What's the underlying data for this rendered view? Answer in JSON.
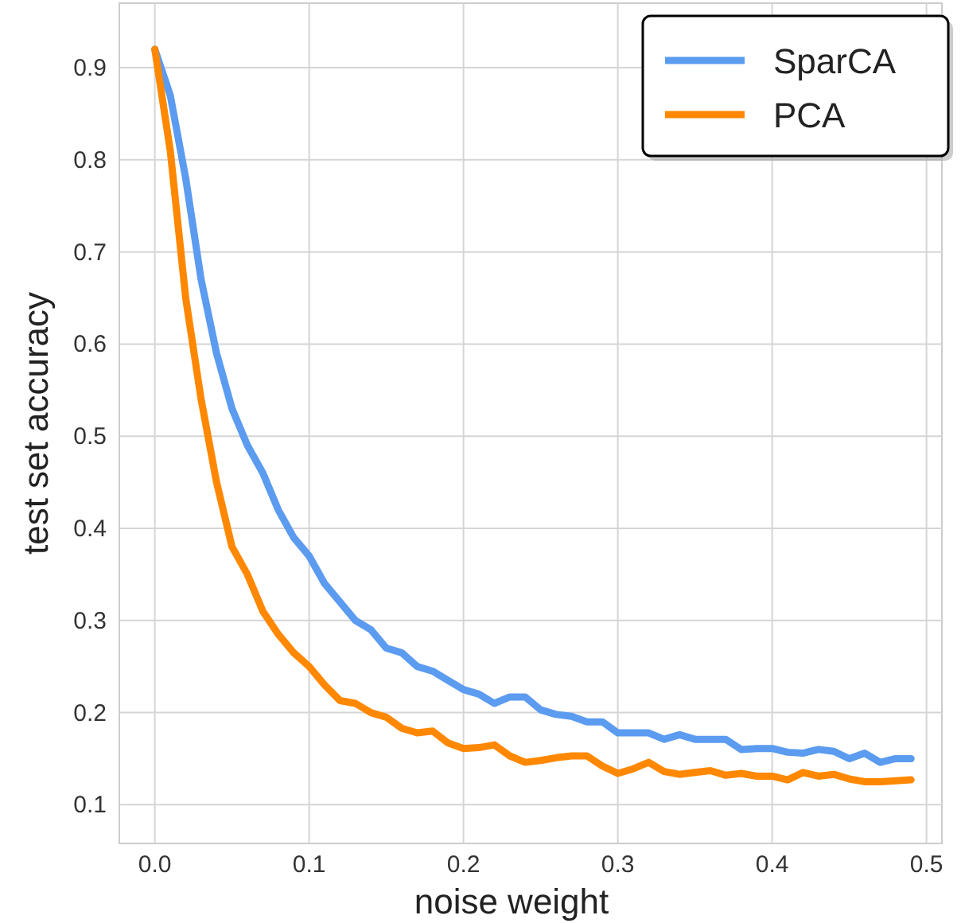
{
  "chart_data": {
    "type": "line",
    "xlabel": "noise weight",
    "ylabel": "test set accuracy",
    "x": [
      0,
      0.01,
      0.02,
      0.03,
      0.04,
      0.05,
      0.06,
      0.07,
      0.08,
      0.09,
      0.1,
      0.11,
      0.12,
      0.13,
      0.14,
      0.15,
      0.16,
      0.17,
      0.18,
      0.19,
      0.2,
      0.21,
      0.22,
      0.23,
      0.24,
      0.25,
      0.26,
      0.27,
      0.28,
      0.29,
      0.3,
      0.31,
      0.32,
      0.33,
      0.34,
      0.35,
      0.36,
      0.37,
      0.38,
      0.39,
      0.4,
      0.41,
      0.42,
      0.43,
      0.44,
      0.45,
      0.46,
      0.47,
      0.48,
      0.49
    ],
    "series": [
      {
        "name": "SparCA",
        "color": "#5b9bf0",
        "values": [
          0.92,
          0.87,
          0.78,
          0.67,
          0.59,
          0.53,
          0.49,
          0.46,
          0.42,
          0.39,
          0.37,
          0.34,
          0.32,
          0.3,
          0.29,
          0.27,
          0.265,
          0.25,
          0.245,
          0.235,
          0.225,
          0.22,
          0.21,
          0.217,
          0.217,
          0.203,
          0.198,
          0.196,
          0.19,
          0.19,
          0.178,
          0.178,
          0.178,
          0.171,
          0.176,
          0.171,
          0.171,
          0.171,
          0.16,
          0.161,
          0.161,
          0.157,
          0.156,
          0.16,
          0.158,
          0.15,
          0.156,
          0.146,
          0.15,
          0.15
        ]
      },
      {
        "name": "PCA",
        "color": "#ff8800",
        "values": [
          0.92,
          0.81,
          0.65,
          0.54,
          0.45,
          0.38,
          0.35,
          0.31,
          0.285,
          0.265,
          0.25,
          0.23,
          0.213,
          0.21,
          0.2,
          0.195,
          0.183,
          0.178,
          0.18,
          0.167,
          0.161,
          0.162,
          0.165,
          0.153,
          0.146,
          0.148,
          0.151,
          0.153,
          0.153,
          0.142,
          0.134,
          0.139,
          0.146,
          0.136,
          0.133,
          0.135,
          0.137,
          0.132,
          0.134,
          0.131,
          0.131,
          0.127,
          0.135,
          0.131,
          0.133,
          0.128,
          0.125,
          0.125,
          0.126,
          0.127
        ]
      }
    ],
    "xlim": [
      -0.023,
      0.51
    ],
    "ylim": [
      0.058,
      0.97
    ],
    "xticks": [
      {
        "value": 0,
        "label": "0.0"
      },
      0.1,
      0.2,
      0.3,
      0.4,
      0.5
    ],
    "yticks": [
      0.1,
      0.2,
      0.3,
      0.4,
      0.5,
      0.6,
      0.7,
      0.8,
      0.9
    ],
    "grid": true,
    "legend": "top right",
    "marker": "none",
    "line_style": "solid"
  }
}
